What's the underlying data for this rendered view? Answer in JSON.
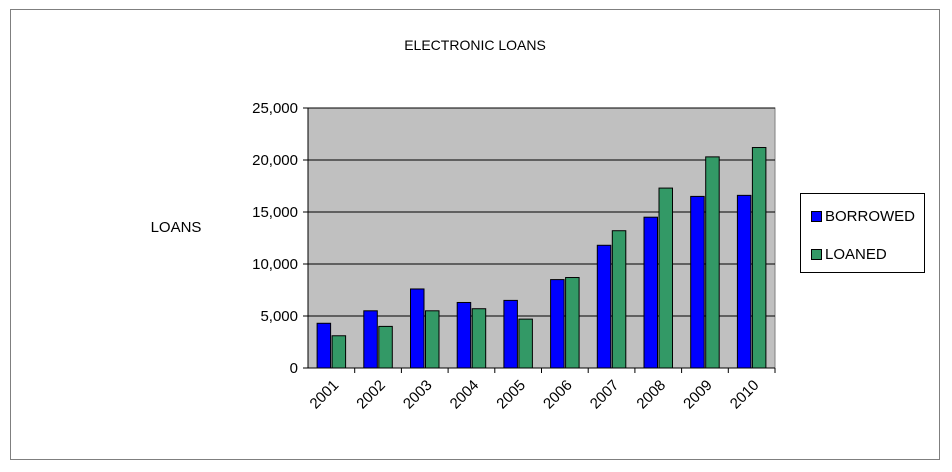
{
  "chart_data": {
    "type": "bar",
    "title": "ELECTRONIC LOANS",
    "ylabel": "LOANS",
    "xlabel": "",
    "categories": [
      "2001",
      "2002",
      "2003",
      "2004",
      "2005",
      "2006",
      "2007",
      "2008",
      "2009",
      "2010"
    ],
    "series": [
      {
        "name": "BORROWED",
        "color": "#0000ff",
        "values": [
          4300,
          5500,
          7600,
          6300,
          6500,
          8500,
          11800,
          14500,
          16500,
          16600
        ]
      },
      {
        "name": "LOANED",
        "color": "#339966",
        "values": [
          3100,
          4000,
          5500,
          5700,
          4700,
          8700,
          13200,
          17300,
          20300,
          21200
        ]
      }
    ],
    "ylim": [
      0,
      25000
    ],
    "yticks": [
      "0",
      "5,000",
      "10,000",
      "15,000",
      "20,000",
      "25,000"
    ],
    "grid": true,
    "plot_background": "#c0c0c0",
    "legend_position": "right"
  }
}
